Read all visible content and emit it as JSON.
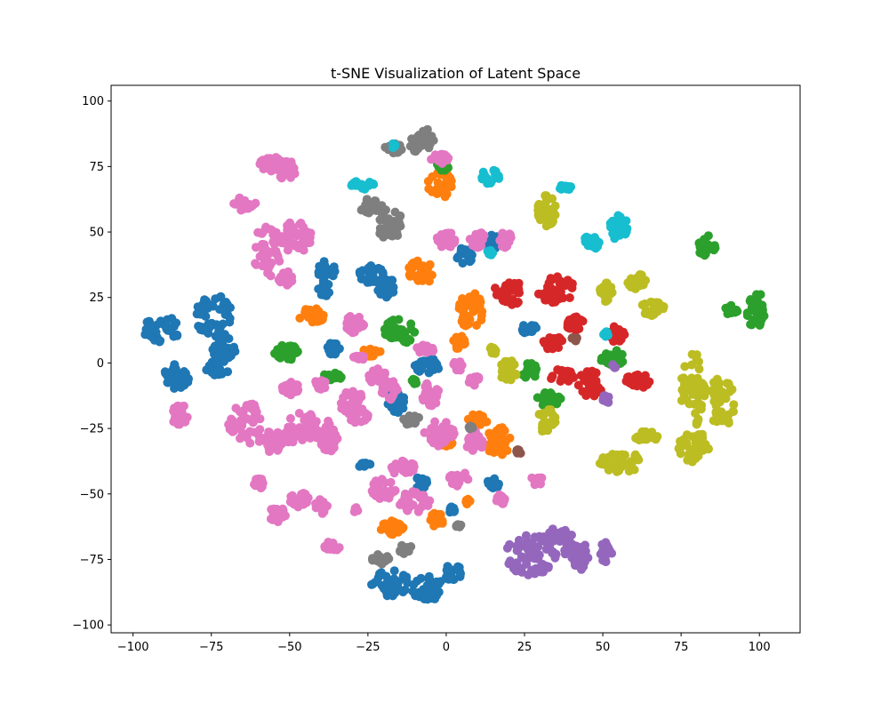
{
  "chart_data": {
    "type": "scatter",
    "title": "t-SNE Visualization of Latent Space",
    "xlabel": "",
    "ylabel": "",
    "xlim": [
      -107,
      113
    ],
    "ylim": [
      -103,
      106
    ],
    "xticks": [
      -100,
      -75,
      -50,
      -25,
      0,
      25,
      50,
      75,
      100
    ],
    "yticks": [
      -100,
      -75,
      -50,
      -25,
      0,
      25,
      50,
      75,
      100
    ],
    "xtick_labels": [
      "−100",
      "−75",
      "−50",
      "−25",
      "0",
      "25",
      "50",
      "75",
      "100"
    ],
    "ytick_labels": [
      "−100",
      "−75",
      "−50",
      "−25",
      "0",
      "25",
      "50",
      "75",
      "100"
    ],
    "grid": false,
    "legend": "none",
    "series": [
      {
        "color": "#1f77b4",
        "clusters": [
          {
            "x": -91,
            "y": 13,
            "rx": 6,
            "ry": 5
          },
          {
            "x": -74,
            "y": 18,
            "rx": 6,
            "ry": 8
          },
          {
            "x": -71,
            "y": 6,
            "rx": 4,
            "ry": 5
          },
          {
            "x": -86,
            "y": -5,
            "rx": 4,
            "ry": 5
          },
          {
            "x": -73,
            "y": -1,
            "rx": 4,
            "ry": 4
          },
          {
            "x": -38,
            "y": 35,
            "rx": 3,
            "ry": 4
          },
          {
            "x": -39,
            "y": 28,
            "rx": 2,
            "ry": 3
          },
          {
            "x": -24,
            "y": 34,
            "rx": 4,
            "ry": 4
          },
          {
            "x": -19,
            "y": 29,
            "rx": 3,
            "ry": 4
          },
          {
            "x": -36,
            "y": 5,
            "rx": 2,
            "ry": 3
          },
          {
            "x": -16,
            "y": -15,
            "rx": 3,
            "ry": 4
          },
          {
            "x": -6,
            "y": -1,
            "rx": 4,
            "ry": 3
          },
          {
            "x": 6,
            "y": 41,
            "rx": 3,
            "ry": 3
          },
          {
            "x": 15,
            "y": 46,
            "rx": 2,
            "ry": 4
          },
          {
            "x": 26,
            "y": 13,
            "rx": 3,
            "ry": 2
          },
          {
            "x": -8,
            "y": -46,
            "rx": 2,
            "ry": 3
          },
          {
            "x": 15,
            "y": -46,
            "rx": 2,
            "ry": 2
          },
          {
            "x": -18,
            "y": -84,
            "rx": 6,
            "ry": 5
          },
          {
            "x": -6,
            "y": -86,
            "rx": 5,
            "ry": 5
          },
          {
            "x": 2,
            "y": -80,
            "rx": 3,
            "ry": 3
          },
          {
            "x": -26,
            "y": -39,
            "rx": 2,
            "ry": 1
          },
          {
            "x": 2,
            "y": -56,
            "rx": 1,
            "ry": 2
          }
        ]
      },
      {
        "color": "#ff7f0e",
        "clusters": [
          {
            "x": -2,
            "y": 68,
            "rx": 4,
            "ry": 5
          },
          {
            "x": -8,
            "y": 35,
            "rx": 4,
            "ry": 5
          },
          {
            "x": -43,
            "y": 18,
            "rx": 4,
            "ry": 3
          },
          {
            "x": -24,
            "y": 4,
            "rx": 3,
            "ry": 2
          },
          {
            "x": 8,
            "y": 20,
            "rx": 4,
            "ry": 7
          },
          {
            "x": 4,
            "y": 8,
            "rx": 2,
            "ry": 3
          },
          {
            "x": 17,
            "y": -30,
            "rx": 4,
            "ry": 6
          },
          {
            "x": 10,
            "y": -22,
            "rx": 3,
            "ry": 3
          },
          {
            "x": 0,
            "y": -30,
            "rx": 2,
            "ry": 2
          },
          {
            "x": -17,
            "y": -63,
            "rx": 4,
            "ry": 3
          },
          {
            "x": -3,
            "y": -60,
            "rx": 2,
            "ry": 3
          },
          {
            "x": 7,
            "y": -53,
            "rx": 1,
            "ry": 1
          }
        ]
      },
      {
        "color": "#2ca02c",
        "clusters": [
          {
            "x": -15,
            "y": 12,
            "rx": 5,
            "ry": 5
          },
          {
            "x": -51,
            "y": 4,
            "rx": 4,
            "ry": 3
          },
          {
            "x": -36,
            "y": -5,
            "rx": 3,
            "ry": 2
          },
          {
            "x": -10,
            "y": -7,
            "rx": 1,
            "ry": 1
          },
          {
            "x": 27,
            "y": -3,
            "rx": 3,
            "ry": 3
          },
          {
            "x": 33,
            "y": -14,
            "rx": 4,
            "ry": 3
          },
          {
            "x": 53,
            "y": 2,
            "rx": 4,
            "ry": 3
          },
          {
            "x": 83,
            "y": 45,
            "rx": 3,
            "ry": 4
          },
          {
            "x": 91,
            "y": 20,
            "rx": 2,
            "ry": 2
          },
          {
            "x": 99,
            "y": 20,
            "rx": 3,
            "ry": 7
          },
          {
            "x": -1,
            "y": 75,
            "rx": 2,
            "ry": 2
          }
        ]
      },
      {
        "color": "#d62728",
        "clusters": [
          {
            "x": 20,
            "y": 27,
            "rx": 5,
            "ry": 5
          },
          {
            "x": 35,
            "y": 28,
            "rx": 6,
            "ry": 5
          },
          {
            "x": 41,
            "y": 15,
            "rx": 3,
            "ry": 3
          },
          {
            "x": 34,
            "y": 8,
            "rx": 3,
            "ry": 3
          },
          {
            "x": 37,
            "y": -5,
            "rx": 4,
            "ry": 3
          },
          {
            "x": 46,
            "y": -8,
            "rx": 4,
            "ry": 5
          },
          {
            "x": 54,
            "y": 11,
            "rx": 3,
            "ry": 3
          },
          {
            "x": 61,
            "y": -7,
            "rx": 4,
            "ry": 3
          }
        ]
      },
      {
        "color": "#9467bd",
        "clusters": [
          {
            "x": 27,
            "y": -73,
            "rx": 8,
            "ry": 8
          },
          {
            "x": 37,
            "y": -68,
            "rx": 5,
            "ry": 6
          },
          {
            "x": 43,
            "y": -74,
            "rx": 3,
            "ry": 5
          },
          {
            "x": 51,
            "y": -72,
            "rx": 2,
            "ry": 4
          },
          {
            "x": 51,
            "y": -14,
            "rx": 1,
            "ry": 2
          },
          {
            "x": 54,
            "y": -1,
            "rx": 1,
            "ry": 1
          }
        ]
      },
      {
        "color": "#8c564b",
        "clusters": [
          {
            "x": 41,
            "y": 9,
            "rx": 1,
            "ry": 1
          },
          {
            "x": 23,
            "y": -34,
            "rx": 1,
            "ry": 1
          }
        ]
      },
      {
        "color": "#e377c2",
        "clusters": [
          {
            "x": -56,
            "y": 76,
            "rx": 4,
            "ry": 3
          },
          {
            "x": -51,
            "y": 74,
            "rx": 3,
            "ry": 4
          },
          {
            "x": -64,
            "y": 61,
            "rx": 4,
            "ry": 3
          },
          {
            "x": -57,
            "y": 43,
            "rx": 5,
            "ry": 10
          },
          {
            "x": -48,
            "y": 48,
            "rx": 5,
            "ry": 6
          },
          {
            "x": -51,
            "y": 32,
            "rx": 3,
            "ry": 3
          },
          {
            "x": -29,
            "y": 15,
            "rx": 3,
            "ry": 4
          },
          {
            "x": -85,
            "y": -20,
            "rx": 3,
            "ry": 4
          },
          {
            "x": -64,
            "y": -23,
            "rx": 6,
            "ry": 8
          },
          {
            "x": -50,
            "y": -10,
            "rx": 3,
            "ry": 3
          },
          {
            "x": -46,
            "y": -25,
            "rx": 6,
            "ry": 6
          },
          {
            "x": -38,
            "y": -28,
            "rx": 4,
            "ry": 6
          },
          {
            "x": -55,
            "y": -30,
            "rx": 5,
            "ry": 4
          },
          {
            "x": -30,
            "y": -15,
            "rx": 4,
            "ry": 5
          },
          {
            "x": -22,
            "y": -5,
            "rx": 3,
            "ry": 3
          },
          {
            "x": -18,
            "y": -10,
            "rx": 3,
            "ry": 4
          },
          {
            "x": -28,
            "y": -20,
            "rx": 3,
            "ry": 3
          },
          {
            "x": -7,
            "y": 5,
            "rx": 3,
            "ry": 2
          },
          {
            "x": -5,
            "y": -12,
            "rx": 3,
            "ry": 5
          },
          {
            "x": 0,
            "y": 47,
            "rx": 3,
            "ry": 3
          },
          {
            "x": 10,
            "y": 47,
            "rx": 3,
            "ry": 3
          },
          {
            "x": 19,
            "y": 47,
            "rx": 2,
            "ry": 3
          },
          {
            "x": 4,
            "y": -1,
            "rx": 2,
            "ry": 2
          },
          {
            "x": 9,
            "y": -7,
            "rx": 2,
            "ry": 2
          },
          {
            "x": -2,
            "y": 78,
            "rx": 3,
            "ry": 2
          },
          {
            "x": -2,
            "y": -27,
            "rx": 5,
            "ry": 5
          },
          {
            "x": 9,
            "y": -30,
            "rx": 3,
            "ry": 4
          },
          {
            "x": -14,
            "y": -40,
            "rx": 4,
            "ry": 3
          },
          {
            "x": -20,
            "y": -48,
            "rx": 4,
            "ry": 4
          },
          {
            "x": -10,
            "y": -53,
            "rx": 5,
            "ry": 4
          },
          {
            "x": 4,
            "y": -44,
            "rx": 3,
            "ry": 3
          },
          {
            "x": 29,
            "y": -45,
            "rx": 2,
            "ry": 2
          },
          {
            "x": 18,
            "y": -52,
            "rx": 2,
            "ry": 2
          },
          {
            "x": -60,
            "y": -46,
            "rx": 2,
            "ry": 2
          },
          {
            "x": -54,
            "y": -58,
            "rx": 3,
            "ry": 3
          },
          {
            "x": -47,
            "y": -52,
            "rx": 3,
            "ry": 3
          },
          {
            "x": -40,
            "y": -55,
            "rx": 2,
            "ry": 3
          },
          {
            "x": -29,
            "y": -56,
            "rx": 1,
            "ry": 1
          },
          {
            "x": -37,
            "y": -70,
            "rx": 3,
            "ry": 2
          },
          {
            "x": -40,
            "y": -8,
            "rx": 2,
            "ry": 2
          },
          {
            "x": -28,
            "y": 2,
            "rx": 2,
            "ry": 1
          }
        ]
      },
      {
        "color": "#7f7f7f",
        "clusters": [
          {
            "x": -8,
            "y": 85,
            "rx": 4,
            "ry": 5
          },
          {
            "x": -17,
            "y": 82,
            "rx": 3,
            "ry": 2
          },
          {
            "x": -24,
            "y": 60,
            "rx": 4,
            "ry": 3
          },
          {
            "x": -18,
            "y": 53,
            "rx": 4,
            "ry": 6
          },
          {
            "x": -21,
            "y": -75,
            "rx": 3,
            "ry": 2
          },
          {
            "x": -13,
            "y": -71,
            "rx": 2,
            "ry": 2
          },
          {
            "x": -11,
            "y": -22,
            "rx": 3,
            "ry": 2
          },
          {
            "x": 4,
            "y": -62,
            "rx": 1,
            "ry": 1
          },
          {
            "x": 8,
            "y": -25,
            "rx": 1,
            "ry": 1
          }
        ]
      },
      {
        "color": "#bcbd22",
        "clusters": [
          {
            "x": 32,
            "y": 58,
            "rx": 3,
            "ry": 6
          },
          {
            "x": 51,
            "y": 27,
            "rx": 2,
            "ry": 4
          },
          {
            "x": 61,
            "y": 31,
            "rx": 3,
            "ry": 3
          },
          {
            "x": 66,
            "y": 21,
            "rx": 4,
            "ry": 3
          },
          {
            "x": 20,
            "y": -3,
            "rx": 3,
            "ry": 4
          },
          {
            "x": 32,
            "y": -22,
            "rx": 3,
            "ry": 5
          },
          {
            "x": 56,
            "y": -38,
            "rx": 7,
            "ry": 4
          },
          {
            "x": 64,
            "y": -28,
            "rx": 4,
            "ry": 2
          },
          {
            "x": 79,
            "y": -10,
            "rx": 4,
            "ry": 14
          },
          {
            "x": 88,
            "y": -15,
            "rx": 4,
            "ry": 10
          },
          {
            "x": 79,
            "y": -32,
            "rx": 5,
            "ry": 6
          },
          {
            "x": 15,
            "y": 5,
            "rx": 1,
            "ry": 2
          }
        ]
      },
      {
        "color": "#17becf",
        "clusters": [
          {
            "x": -27,
            "y": 68,
            "rx": 4,
            "ry": 2
          },
          {
            "x": 14,
            "y": 71,
            "rx": 3,
            "ry": 3
          },
          {
            "x": 38,
            "y": 67,
            "rx": 3,
            "ry": 1
          },
          {
            "x": 46,
            "y": 46,
            "rx": 3,
            "ry": 3
          },
          {
            "x": 55,
            "y": 52,
            "rx": 3,
            "ry": 5
          },
          {
            "x": -17,
            "y": 83,
            "rx": 1,
            "ry": 1
          },
          {
            "x": 51,
            "y": 11,
            "rx": 1,
            "ry": 1
          },
          {
            "x": 14,
            "y": 42,
            "rx": 1,
            "ry": 1
          }
        ]
      }
    ]
  }
}
